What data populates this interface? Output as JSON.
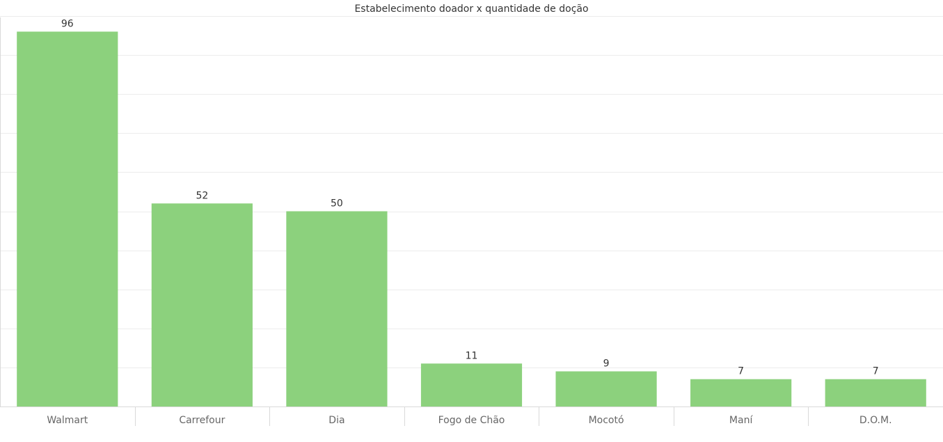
{
  "chart_data": {
    "type": "bar",
    "title": "Estabelecimento doador x quantidade de doção",
    "xlabel": "",
    "ylabel": "",
    "categories": [
      "Walmart",
      "Carrefour",
      "Dia",
      "Fogo de Chão",
      "Mocotó",
      "Maní",
      "D.O.M."
    ],
    "values": [
      96,
      52,
      50,
      11,
      9,
      7,
      7
    ],
    "ylim": [
      0,
      100
    ],
    "grid": true,
    "bar_color": "#8cd17d"
  }
}
